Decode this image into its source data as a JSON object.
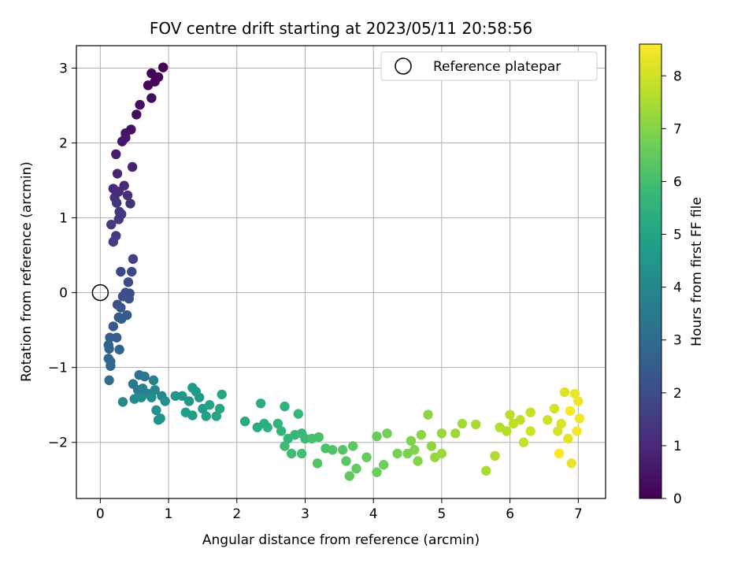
{
  "chart_data": {
    "type": "scatter",
    "title": "FOV centre drift starting at 2023/05/11 20:58:56",
    "xlabel": "Angular distance from reference (arcmin)",
    "ylabel": "Rotation from reference (arcmin)",
    "xlim": [
      -0.35,
      7.4
    ],
    "ylim": [
      -2.75,
      3.3
    ],
    "xticks": [
      0,
      1,
      2,
      3,
      4,
      5,
      6,
      7
    ],
    "yticks": [
      3,
      2,
      1,
      0,
      -1,
      -2
    ],
    "xtick_labels": [
      "0",
      "1",
      "2",
      "3",
      "4",
      "5",
      "6",
      "7"
    ],
    "ytick_labels": [
      "3",
      "2",
      "1",
      "0",
      "−1",
      "−2"
    ],
    "grid": true,
    "legend": {
      "position": "top-right",
      "entries": [
        "Reference platepar"
      ]
    },
    "reference_point": {
      "x": 0,
      "y": 0
    },
    "colorbar": {
      "label": "Hours from first FF file",
      "range": [
        0,
        8.6
      ],
      "ticks": [
        0,
        1,
        2,
        3,
        4,
        5,
        6,
        7,
        8
      ],
      "tick_labels": [
        "0",
        "1",
        "2",
        "3",
        "4",
        "5",
        "6",
        "7",
        "8"
      ],
      "colormap": "viridis"
    },
    "points": [
      [
        0.92,
        3.01,
        0.0
      ],
      [
        0.85,
        2.88,
        0.05
      ],
      [
        0.75,
        2.93,
        0.1
      ],
      [
        0.8,
        2.82,
        0.12
      ],
      [
        0.7,
        2.77,
        0.18
      ],
      [
        0.75,
        2.6,
        0.25
      ],
      [
        0.58,
        2.51,
        0.3
      ],
      [
        0.53,
        2.38,
        0.35
      ],
      [
        0.45,
        2.18,
        0.4
      ],
      [
        0.37,
        2.13,
        0.45
      ],
      [
        0.32,
        2.02,
        0.5
      ],
      [
        0.37,
        2.07,
        0.55
      ],
      [
        0.23,
        1.85,
        0.65
      ],
      [
        0.47,
        1.68,
        0.8
      ],
      [
        0.25,
        1.59,
        0.9
      ],
      [
        0.35,
        1.43,
        1.0
      ],
      [
        0.19,
        1.39,
        1.05
      ],
      [
        0.27,
        1.35,
        1.1
      ],
      [
        0.4,
        1.3,
        1.15
      ],
      [
        0.21,
        1.27,
        1.2
      ],
      [
        0.44,
        1.19,
        1.25
      ],
      [
        0.24,
        1.2,
        1.3
      ],
      [
        0.28,
        1.08,
        1.35
      ],
      [
        0.31,
        1.05,
        1.4
      ],
      [
        0.27,
        0.98,
        1.45
      ],
      [
        0.16,
        0.91,
        1.5
      ],
      [
        0.23,
        0.76,
        1.55
      ],
      [
        0.19,
        0.68,
        1.6
      ],
      [
        0.48,
        0.45,
        1.7
      ],
      [
        0.3,
        0.28,
        1.8
      ],
      [
        0.46,
        0.28,
        1.85
      ],
      [
        0.41,
        0.14,
        1.9
      ],
      [
        0.37,
        0.0,
        2.0
      ],
      [
        0.43,
        -0.01,
        2.05
      ],
      [
        0.33,
        -0.05,
        2.1
      ],
      [
        0.42,
        -0.08,
        2.15
      ],
      [
        0.25,
        -0.16,
        2.2
      ],
      [
        0.3,
        -0.2,
        2.3
      ],
      [
        0.39,
        -0.3,
        2.35
      ],
      [
        0.27,
        -0.33,
        2.4
      ],
      [
        0.31,
        -0.35,
        2.45
      ],
      [
        0.19,
        -0.45,
        2.5
      ],
      [
        0.24,
        -0.6,
        2.55
      ],
      [
        0.14,
        -0.6,
        2.6
      ],
      [
        0.12,
        -0.7,
        2.65
      ],
      [
        0.13,
        -0.75,
        2.7
      ],
      [
        0.28,
        -0.76,
        2.75
      ],
      [
        0.12,
        -0.88,
        2.8
      ],
      [
        0.15,
        -0.92,
        2.85
      ],
      [
        0.15,
        -0.98,
        2.9
      ],
      [
        0.13,
        -1.17,
        3.0
      ],
      [
        0.57,
        -1.1,
        3.2
      ],
      [
        0.65,
        -1.12,
        3.4
      ],
      [
        0.48,
        -1.22,
        3.5
      ],
      [
        0.55,
        -1.3,
        3.6
      ],
      [
        0.62,
        -1.28,
        3.7
      ],
      [
        0.78,
        -1.17,
        3.8
      ],
      [
        0.7,
        -1.35,
        3.9
      ],
      [
        0.8,
        -1.3,
        3.95
      ],
      [
        0.9,
        -1.38,
        4.0
      ],
      [
        0.33,
        -1.46,
        4.05
      ],
      [
        0.5,
        -1.42,
        4.1
      ],
      [
        0.6,
        -1.4,
        4.15
      ],
      [
        0.75,
        -1.4,
        4.2
      ],
      [
        0.95,
        -1.45,
        4.25
      ],
      [
        0.82,
        -1.57,
        4.3
      ],
      [
        0.85,
        -1.7,
        4.35
      ],
      [
        0.88,
        -1.68,
        4.4
      ],
      [
        1.1,
        -1.38,
        4.45
      ],
      [
        1.2,
        -1.38,
        4.5
      ],
      [
        1.3,
        -1.45,
        4.55
      ],
      [
        1.35,
        -1.27,
        4.6
      ],
      [
        1.4,
        -1.32,
        4.65
      ],
      [
        1.45,
        -1.4,
        4.7
      ],
      [
        1.5,
        -1.55,
        4.75
      ],
      [
        1.25,
        -1.6,
        4.8
      ],
      [
        1.35,
        -1.64,
        4.85
      ],
      [
        1.55,
        -1.65,
        4.9
      ],
      [
        1.6,
        -1.5,
        4.95
      ],
      [
        1.7,
        -1.65,
        5.0
      ],
      [
        1.75,
        -1.55,
        5.05
      ],
      [
        1.78,
        -1.36,
        5.1
      ],
      [
        2.12,
        -1.72,
        5.2
      ],
      [
        2.3,
        -1.8,
        5.3
      ],
      [
        2.35,
        -1.48,
        5.35
      ],
      [
        2.4,
        -1.75,
        5.4
      ],
      [
        2.45,
        -1.8,
        5.45
      ],
      [
        2.6,
        -1.75,
        5.5
      ],
      [
        2.7,
        -1.52,
        5.55
      ],
      [
        2.65,
        -1.85,
        5.6
      ],
      [
        2.75,
        -1.95,
        5.65
      ],
      [
        2.9,
        -1.62,
        5.7
      ],
      [
        2.85,
        -1.9,
        5.75
      ],
      [
        2.95,
        -1.88,
        5.8
      ],
      [
        3.0,
        -1.95,
        5.85
      ],
      [
        2.7,
        -2.05,
        5.9
      ],
      [
        2.8,
        -2.15,
        5.95
      ],
      [
        2.95,
        -2.15,
        6.0
      ],
      [
        3.1,
        -1.95,
        6.05
      ],
      [
        3.2,
        -1.93,
        6.1
      ],
      [
        3.3,
        -2.08,
        6.15
      ],
      [
        3.4,
        -2.1,
        6.2
      ],
      [
        3.18,
        -2.28,
        6.25
      ],
      [
        3.55,
        -2.1,
        6.3
      ],
      [
        3.6,
        -2.25,
        6.35
      ],
      [
        3.7,
        -2.05,
        6.4
      ],
      [
        3.65,
        -2.45,
        6.45
      ],
      [
        3.75,
        -2.35,
        6.5
      ],
      [
        3.9,
        -2.2,
        6.55
      ],
      [
        4.05,
        -1.92,
        6.6
      ],
      [
        4.05,
        -2.4,
        6.65
      ],
      [
        4.15,
        -2.3,
        6.7
      ],
      [
        4.2,
        -1.88,
        6.75
      ],
      [
        4.35,
        -2.15,
        6.8
      ],
      [
        4.5,
        -2.15,
        6.85
      ],
      [
        4.55,
        -1.98,
        6.9
      ],
      [
        4.6,
        -2.1,
        6.95
      ],
      [
        4.65,
        -2.25,
        7.0
      ],
      [
        4.7,
        -1.9,
        7.05
      ],
      [
        4.8,
        -1.63,
        7.1
      ],
      [
        4.85,
        -2.05,
        7.15
      ],
      [
        4.9,
        -2.2,
        7.2
      ],
      [
        5.0,
        -1.88,
        7.25
      ],
      [
        5.0,
        -2.15,
        7.3
      ],
      [
        5.2,
        -1.88,
        7.35
      ],
      [
        5.3,
        -1.75,
        7.4
      ],
      [
        5.5,
        -1.76,
        7.45
      ],
      [
        5.65,
        -2.38,
        7.5
      ],
      [
        5.78,
        -2.18,
        7.55
      ],
      [
        5.85,
        -1.8,
        7.6
      ],
      [
        5.95,
        -1.85,
        7.65
      ],
      [
        6.0,
        -1.63,
        7.7
      ],
      [
        6.05,
        -1.75,
        7.75
      ],
      [
        6.15,
        -1.7,
        7.8
      ],
      [
        6.2,
        -2.0,
        7.85
      ],
      [
        6.3,
        -1.6,
        7.9
      ],
      [
        6.3,
        -1.85,
        7.95
      ],
      [
        6.55,
        -1.7,
        8.0
      ],
      [
        6.65,
        -1.55,
        8.05
      ],
      [
        6.7,
        -1.85,
        8.1
      ],
      [
        6.75,
        -1.75,
        8.15
      ],
      [
        6.8,
        -1.33,
        8.2
      ],
      [
        6.85,
        -1.95,
        8.25
      ],
      [
        6.9,
        -2.28,
        8.3
      ],
      [
        6.95,
        -1.35,
        8.35
      ],
      [
        7.0,
        -1.45,
        8.4
      ],
      [
        7.02,
        -1.68,
        8.45
      ],
      [
        6.98,
        -1.85,
        8.5
      ],
      [
        6.88,
        -1.58,
        8.55
      ],
      [
        6.72,
        -2.15,
        8.6
      ]
    ]
  }
}
